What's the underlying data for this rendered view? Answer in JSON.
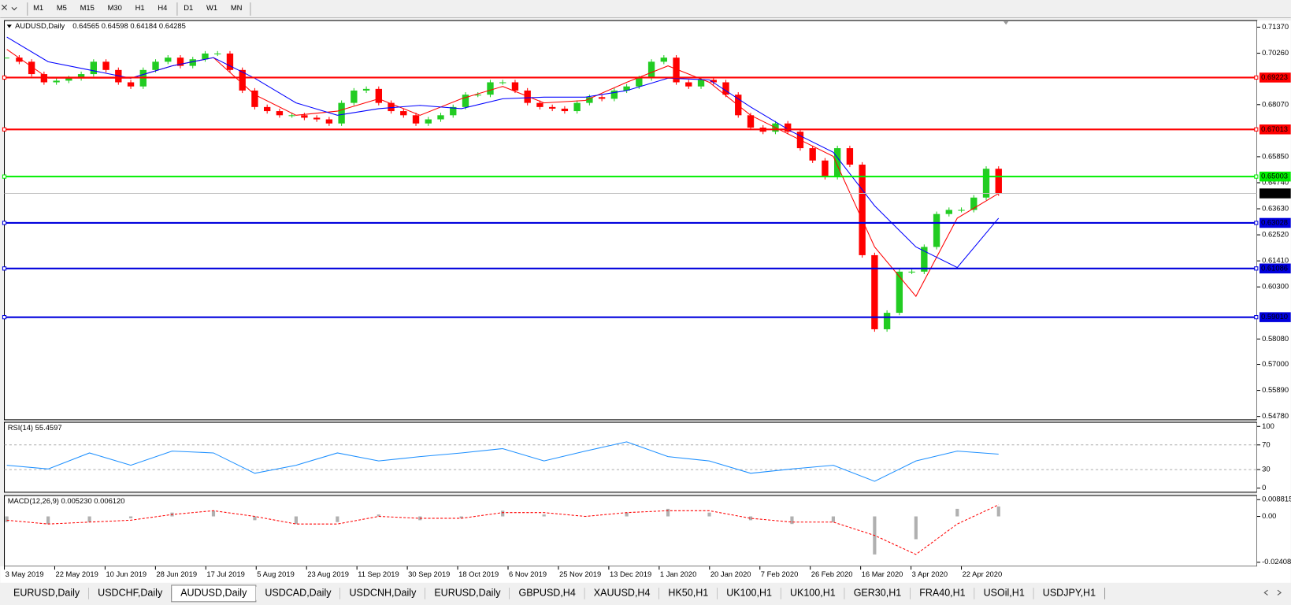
{
  "toolbar": {
    "timeframes": [
      "M1",
      "M5",
      "M15",
      "M30",
      "H1",
      "H4",
      "D1",
      "W1",
      "MN"
    ]
  },
  "chart": {
    "symbol": "AUDUSD,Daily",
    "quote": "0.64565 0.64598 0.64184 0.64285",
    "ylim": [
      0.54637,
      0.71651
    ],
    "price_ticks": [
      {
        "value": 0.7137,
        "label": "0.71370"
      },
      {
        "value": 0.7026,
        "label": "0.70260"
      },
      {
        "value": 0.6807,
        "label": "0.68070"
      },
      {
        "value": 0.6585,
        "label": "0.65850"
      },
      {
        "value": 0.6474,
        "label": "0.64740"
      },
      {
        "value": 0.6363,
        "label": "0.63630"
      },
      {
        "value": 0.6252,
        "label": "0.62520"
      },
      {
        "value": 0.6141,
        "label": "0.61410"
      },
      {
        "value": 0.603,
        "label": "0.60300"
      },
      {
        "value": 0.5808,
        "label": "0.58080"
      },
      {
        "value": 0.57,
        "label": "0.57000"
      },
      {
        "value": 0.5589,
        "label": "0.55890"
      },
      {
        "value": 0.5478,
        "label": "0.54780"
      }
    ],
    "levels": [
      {
        "price": 0.69223,
        "color": "#ff0000"
      },
      {
        "price": 0.67013,
        "color": "#ff0000"
      },
      {
        "price": 0.65003,
        "color": "#00ee00"
      },
      {
        "price": 0.63028,
        "color": "#0000dd"
      },
      {
        "price": 0.61086,
        "color": "#0000dd"
      },
      {
        "price": {
          "value": 0.5901,
          "label": "0.59010"
        },
        "color": "#0000dd"
      }
    ],
    "current_price": 0.64285,
    "dates": [
      "3 May 2019",
      "22 May 2019",
      "10 Jun 2019",
      "28 Jun 2019",
      "17 Jul 2019",
      "5 Aug 2019",
      "23 Aug 2019",
      "11 Sep 2019",
      "30 Sep 2019",
      "18 Oct 2019",
      "6 Nov 2019",
      "25 Nov 2019",
      "13 Dec 2019",
      "1 Jan 2020",
      "20 Jan 2020",
      "7 Feb 2020",
      "26 Feb 2020",
      "16 Mar 2020",
      "3 Apr 2020",
      "22 Apr 2020"
    ],
    "up_color": "#22cc22",
    "down_color": "#ff0000",
    "closes": [
      0.70072,
      0.69897,
      0.6937,
      0.6902,
      0.6909,
      0.69195,
      0.6937,
      0.69897,
      0.69546,
      0.6902,
      0.68844,
      0.69546,
      0.69897,
      0.70072,
      0.69721,
      0.70002,
      0.70247,
      0.70247,
      0.69546,
      0.68669,
      0.67967,
      0.67792,
      0.67616,
      0.67616,
      0.67511,
      0.67441,
      0.67266,
      0.68143,
      0.68669,
      0.68739,
      0.68143,
      0.67792,
      0.67616,
      0.67266,
      0.67441,
      0.67616,
      0.67967,
      0.68493,
      0.68493,
      0.6902,
      0.6902,
      0.68669,
      0.68143,
      0.67967,
      0.67897,
      0.67792,
      0.68143,
      0.68388,
      0.68318,
      0.68669,
      0.68844,
      0.69195,
      0.69897,
      0.70072,
      0.6902,
      0.68844,
      0.69125,
      0.6902,
      0.68493,
      0.67616,
      0.6709,
      0.66915,
      0.67266,
      0.66915,
      0.66213,
      0.65687,
      0.64985,
      0.66213,
      0.65512,
      0.61653,
      0.58496,
      0.59197,
      0.60951,
      0.60951,
      0.62004,
      0.63407,
      0.63582,
      0.63582,
      0.64108,
      0.65336,
      0.64285
    ],
    "ma_fast": {
      "color": "#ff0000",
      "values": [
        0.70423,
        0.69195,
        0.69195,
        0.69195,
        0.69721,
        0.70072,
        0.68493,
        0.67616,
        0.67792,
        0.68318,
        0.67616,
        0.68318,
        0.68844,
        0.68143,
        0.68248,
        0.6902,
        0.69721,
        0.6902,
        0.67616,
        0.66739,
        0.65862,
        0.62004,
        0.59899,
        0.63231,
        0.64284
      ]
    },
    "ma_slow": {
      "color": "#0000ff",
      "values": [
        0.70949,
        0.69897,
        0.69546,
        0.69195,
        0.69721,
        0.70072,
        0.69195,
        0.68143,
        0.67616,
        0.67897,
        0.68037,
        0.67897,
        0.68318,
        0.68388,
        0.68388,
        0.68669,
        0.69195,
        0.69125,
        0.67967,
        0.66915,
        0.66038,
        0.63758,
        0.62004,
        0.61127,
        0.63231
      ]
    }
  },
  "rsi": {
    "label": "RSI(14) 55.4597",
    "ylim": [
      -6.7,
      106.7
    ],
    "ticks": [
      100,
      70,
      30,
      0
    ],
    "levels": [
      70,
      30
    ],
    "color": "#1e90ff",
    "values": [
      37,
      31,
      57,
      37,
      60,
      57,
      24,
      37,
      57,
      44,
      51,
      57,
      64,
      44,
      60,
      75,
      51,
      44,
      24,
      31,
      37,
      11,
      44,
      60,
      55
    ]
  },
  "macd": {
    "label": "MACD(12,26,9) 0.005230 0.006120",
    "ylim": [
      -0.026247,
      0.01098
    ],
    "ticks": [
      0.008815,
      {
        "value": 0,
        "label": "0.00"
      },
      -0.024082
    ],
    "histogram": [
      -0.003,
      -0.004,
      -0.003,
      -0.001,
      0.002,
      0.003,
      -0.002,
      -0.004,
      -0.003,
      0.001,
      -0.002,
      -0.001,
      0.003,
      0.001,
      0.0,
      0.002,
      0.004,
      0.002,
      -0.002,
      -0.004,
      -0.003,
      -0.02,
      -0.012,
      0.004,
      0.00523
    ],
    "signal": [
      -0.002,
      -0.004,
      -0.003,
      -0.002,
      0.001,
      0.003,
      0.0,
      -0.004,
      -0.004,
      0.0,
      -0.001,
      -0.001,
      0.002,
      0.002,
      0.0,
      0.002,
      0.003,
      0.003,
      -0.001,
      -0.003,
      -0.003,
      -0.01,
      -0.02,
      -0.004,
      0.00612
    ],
    "histogram_color": "#b0b0b0",
    "signal_color": "#ff0000"
  },
  "tabs": {
    "items": [
      "EURUSD,Daily",
      "USDCHF,Daily",
      "AUDUSD,Daily",
      "USDCAD,Daily",
      "USDCNH,Daily",
      "EURUSD,Daily",
      "GBPUSD,H4",
      "XAUUSD,H4",
      "HK50,H1",
      "UK100,H1",
      "UK100,H1",
      "GER30,H1",
      "FRA40,H1",
      "USOil,H1",
      "USDJPY,H1"
    ],
    "active": 2
  }
}
